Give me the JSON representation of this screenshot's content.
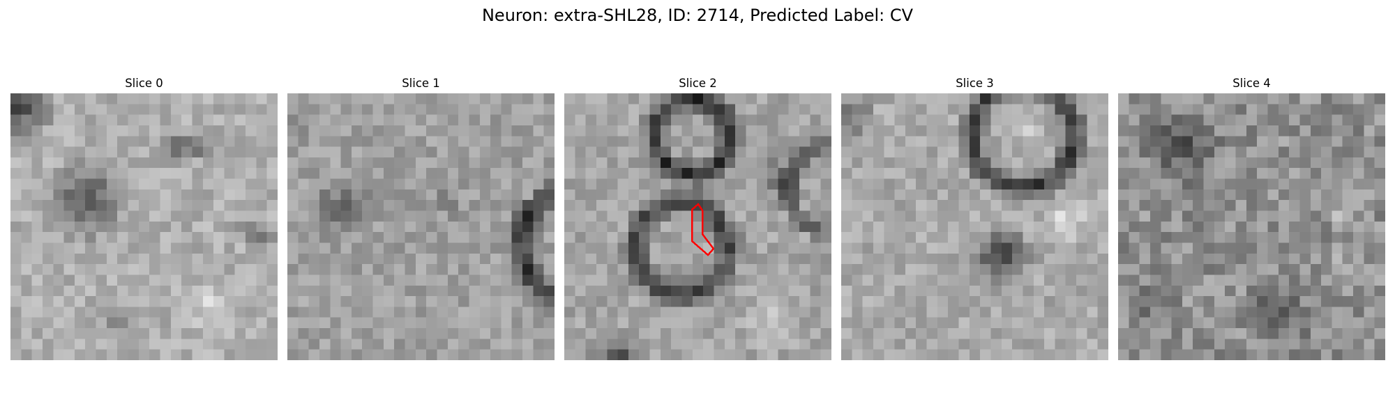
{
  "figure": {
    "title": "Neuron: extra-SHL28, ID: 2714, Predicted Label: CV"
  },
  "panels": [
    {
      "title": "Slice 0",
      "variant": 0
    },
    {
      "title": "Slice 1",
      "variant": 1
    },
    {
      "title": "Slice 2",
      "variant": 2,
      "highlight": true
    },
    {
      "title": "Slice 3",
      "variant": 3
    },
    {
      "title": "Slice 4",
      "variant": 4
    }
  ],
  "colors": {
    "highlight": "#ff0000",
    "background": "#ffffff"
  },
  "image_type": "grayscale EM slice crops (pixelated)"
}
